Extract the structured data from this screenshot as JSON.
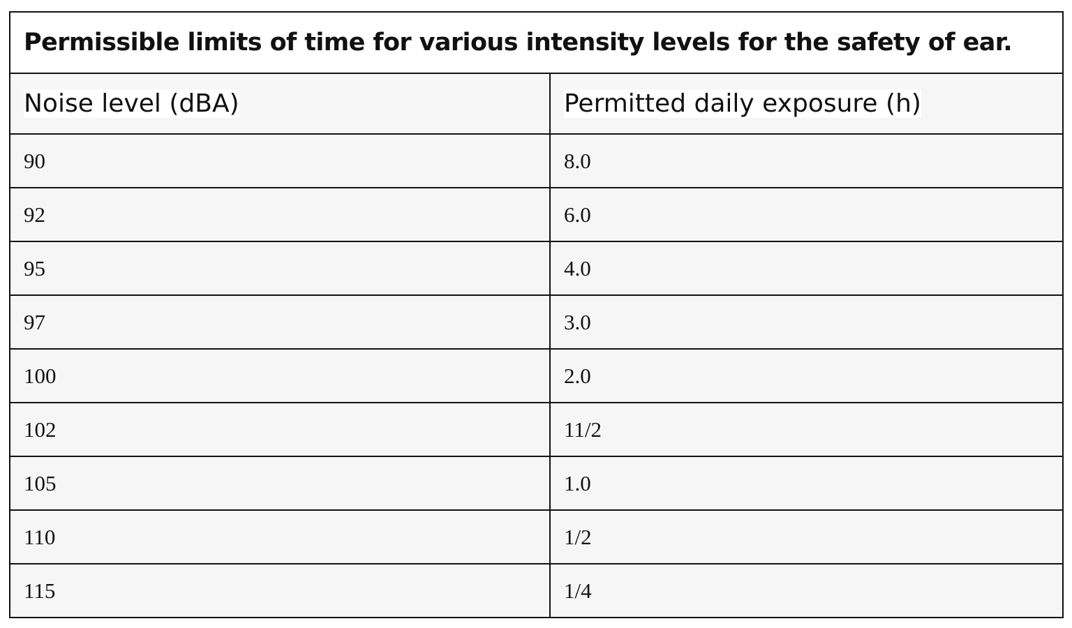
{
  "table": {
    "caption": "Permissible limits of time for various intensity levels for the safety of ear.",
    "headers": [
      "Noise level (dBA)",
      "Permitted daily exposure (h)"
    ],
    "rows": [
      [
        "90",
        "8.0"
      ],
      [
        "92",
        "6.0"
      ],
      [
        "95",
        "4.0"
      ],
      [
        "97",
        "3.0"
      ],
      [
        "100",
        "2.0"
      ],
      [
        "102",
        "11/2"
      ],
      [
        "105",
        "1.0"
      ],
      [
        "110",
        "1/2"
      ],
      [
        "115",
        "1/4"
      ]
    ]
  }
}
